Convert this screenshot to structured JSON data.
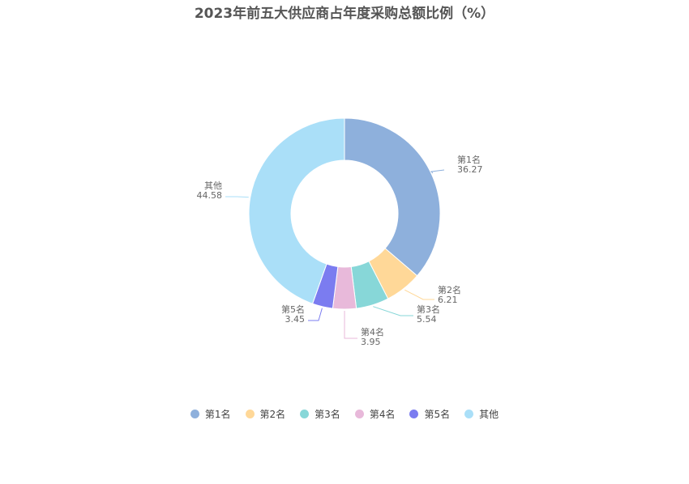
{
  "chart_data": {
    "type": "pie",
    "title": "2023年前五大供应商占年度采购总额比例（%）",
    "donut": true,
    "legend_position": "bottom",
    "slices": [
      {
        "label": "第1名",
        "value": 36.27,
        "value_text": "36.27",
        "color": "#8eb0dc"
      },
      {
        "label": "第2名",
        "value": 6.21,
        "value_text": "6.21",
        "color": "#ffd898"
      },
      {
        "label": "第3名",
        "value": 5.54,
        "value_text": "5.54",
        "color": "#87d7d8"
      },
      {
        "label": "第4名",
        "value": 3.95,
        "value_text": "3.95",
        "color": "#e8b9da"
      },
      {
        "label": "第5名",
        "value": 3.45,
        "value_text": "3.45",
        "color": "#7b7cf0"
      },
      {
        "label": "其他",
        "value": 44.58,
        "value_text": "44.58",
        "color": "#aadff8"
      }
    ]
  }
}
